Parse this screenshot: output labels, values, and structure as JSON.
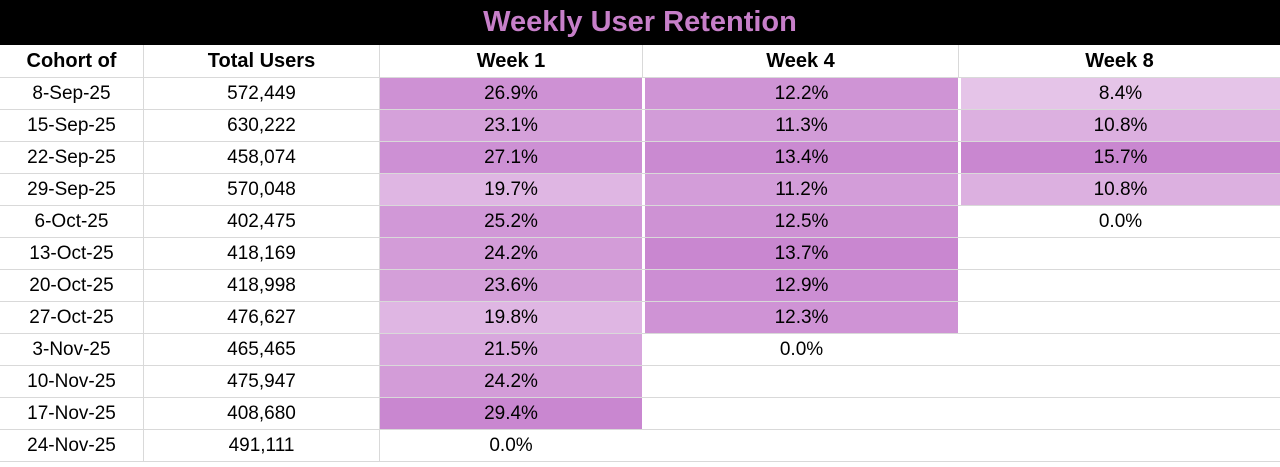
{
  "title": "Weekly User Retention",
  "colors": {
    "title_bar_bg": "#000000",
    "title_text": "#C77FC9",
    "gridline": "#D9D9D9",
    "heat_max": "#C987D0",
    "heat_min": "#FFFFFF",
    "cell_text": "#000000"
  },
  "table": {
    "columns": [
      {
        "key": "cohort",
        "label": "Cohort of"
      },
      {
        "key": "total",
        "label": "Total Users"
      },
      {
        "key": "week1",
        "label": "Week 1"
      },
      {
        "key": "week4",
        "label": "Week 4"
      },
      {
        "key": "week8",
        "label": "Week 8"
      }
    ],
    "rows": [
      {
        "cohort": "8-Sep-25",
        "total": "572,449",
        "week1": {
          "text": "26.9%",
          "bg": "#CE91D4"
        },
        "week4": {
          "text": "12.2%",
          "bg": "#CF94D5"
        },
        "week8": {
          "text": "8.4%",
          "bg": "#E5C4E8"
        }
      },
      {
        "cohort": "15-Sep-25",
        "total": "630,222",
        "week1": {
          "text": "23.1%",
          "bg": "#D5A1DA"
        },
        "week4": {
          "text": "11.3%",
          "bg": "#D29CD8"
        },
        "week8": {
          "text": "10.8%",
          "bg": "#DCB0E0"
        }
      },
      {
        "cohort": "22-Sep-25",
        "total": "458,074",
        "week1": {
          "text": "27.1%",
          "bg": "#CD90D4"
        },
        "week4": {
          "text": "13.4%",
          "bg": "#CA8AD1"
        },
        "week8": {
          "text": "15.7%",
          "bg": "#C987D0"
        }
      },
      {
        "cohort": "29-Sep-25",
        "total": "570,048",
        "week1": {
          "text": "19.7%",
          "bg": "#DFB6E3"
        },
        "week4": {
          "text": "11.2%",
          "bg": "#D39DD9"
        },
        "week8": {
          "text": "10.8%",
          "bg": "#DCB0E0"
        }
      },
      {
        "cohort": "6-Oct-25",
        "total": "402,475",
        "week1": {
          "text": "25.2%",
          "bg": "#D198D7"
        },
        "week4": {
          "text": "12.5%",
          "bg": "#CE92D4"
        },
        "week8": {
          "text": "0.0%",
          "bg": "#FFFFFF"
        }
      },
      {
        "cohort": "13-Oct-25",
        "total": "418,169",
        "week1": {
          "text": "24.2%",
          "bg": "#D39CD8"
        },
        "week4": {
          "text": "13.7%",
          "bg": "#C987D0"
        },
        "week8": {
          "text": "",
          "bg": "#FFFFFF"
        }
      },
      {
        "cohort": "20-Oct-25",
        "total": "418,998",
        "week1": {
          "text": "23.6%",
          "bg": "#D49FD9"
        },
        "week4": {
          "text": "12.9%",
          "bg": "#CC8ED3"
        },
        "week8": {
          "text": "",
          "bg": "#FFFFFF"
        }
      },
      {
        "cohort": "27-Oct-25",
        "total": "476,627",
        "week1": {
          "text": "19.8%",
          "bg": "#DFB6E3"
        },
        "week4": {
          "text": "12.3%",
          "bg": "#CF93D5"
        },
        "week8": {
          "text": "",
          "bg": "#FFFFFF"
        }
      },
      {
        "cohort": "3-Nov-25",
        "total": "465,465",
        "week1": {
          "text": "21.5%",
          "bg": "#D8A7DD"
        },
        "week4": {
          "text": "0.0%",
          "bg": "#FFFFFF"
        },
        "week8": {
          "text": "",
          "bg": "#FFFFFF"
        }
      },
      {
        "cohort": "10-Nov-25",
        "total": "475,947",
        "week1": {
          "text": "24.2%",
          "bg": "#D39CD8"
        },
        "week4": {
          "text": "",
          "bg": "#FFFFFF"
        },
        "week8": {
          "text": "",
          "bg": "#FFFFFF"
        }
      },
      {
        "cohort": "17-Nov-25",
        "total": "408,680",
        "week1": {
          "text": "29.4%",
          "bg": "#C987D0"
        },
        "week4": {
          "text": "",
          "bg": "#FFFFFF"
        },
        "week8": {
          "text": "",
          "bg": "#FFFFFF"
        }
      },
      {
        "cohort": "24-Nov-25",
        "total": "491,111",
        "week1": {
          "text": "0.0%",
          "bg": "#FFFFFF"
        },
        "week4": {
          "text": "",
          "bg": "#FFFFFF"
        },
        "week8": {
          "text": "",
          "bg": "#FFFFFF"
        }
      }
    ]
  },
  "chart_data": {
    "type": "heatmap",
    "title": "Weekly User Retention",
    "columns": [
      "Cohort of",
      "Total Users",
      "Week 1",
      "Week 4",
      "Week 8"
    ],
    "cohorts": [
      "8-Sep-25",
      "15-Sep-25",
      "22-Sep-25",
      "29-Sep-25",
      "6-Oct-25",
      "13-Oct-25",
      "20-Oct-25",
      "27-Oct-25",
      "3-Nov-25",
      "10-Nov-25",
      "17-Nov-25",
      "24-Nov-25"
    ],
    "total_users": [
      572449,
      630222,
      458074,
      570048,
      402475,
      418169,
      418998,
      476627,
      465465,
      475947,
      408680,
      491111
    ],
    "series": [
      {
        "name": "Week 1",
        "values_pct": [
          26.9,
          23.1,
          27.1,
          19.7,
          25.2,
          24.2,
          23.6,
          19.8,
          21.5,
          24.2,
          29.4,
          0.0
        ]
      },
      {
        "name": "Week 4",
        "values_pct": [
          12.2,
          11.3,
          13.4,
          11.2,
          12.5,
          13.7,
          12.9,
          12.3,
          0.0,
          null,
          null,
          null
        ]
      },
      {
        "name": "Week 8",
        "values_pct": [
          8.4,
          10.8,
          15.7,
          10.8,
          0.0,
          null,
          null,
          null,
          null,
          null,
          null,
          null
        ]
      }
    ],
    "color_scale": {
      "min_color": "#FFFFFF",
      "max_color": "#C987D0",
      "per_column": true,
      "empty_cells_blank": true
    }
  }
}
